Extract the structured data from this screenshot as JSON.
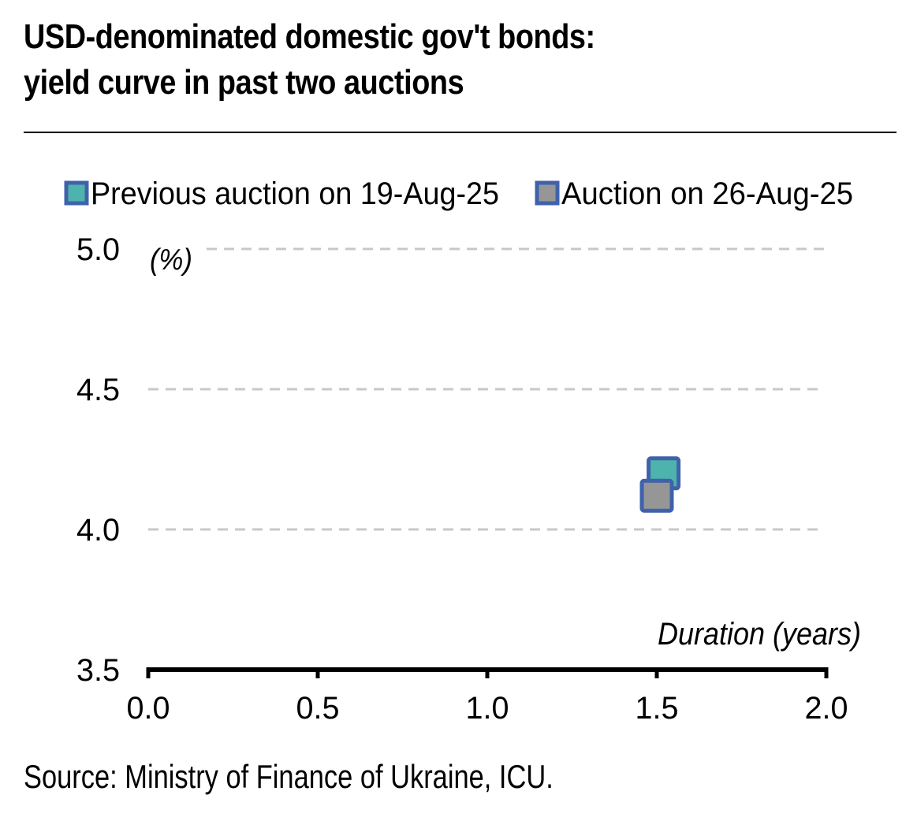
{
  "title_line1": "USD-denominated domestic gov't bonds:",
  "title_line2": "yield curve in past two auctions",
  "source": "Source: Ministry of Finance of Ukraine, ICU.",
  "colors": {
    "teal": "#4db3ac",
    "gray": "#969696",
    "border": "#3f62aa",
    "grid": "#c8c8c8"
  },
  "chart_data": {
    "type": "scatter",
    "title": "USD-denominated domestic gov't bonds: yield curve in past two auctions",
    "xlabel": "Duration (years)",
    "ylabel": "(%)",
    "xlim": [
      0.0,
      2.0
    ],
    "ylim": [
      3.5,
      5.0
    ],
    "xticks": [
      "0.0",
      "0.5",
      "1.0",
      "1.5",
      "2.0"
    ],
    "yticks": [
      "3.5",
      "4.0",
      "4.5",
      "5.0"
    ],
    "grid": "horizontal dashed",
    "legend_position": "top",
    "series": [
      {
        "name": "Previous auction on 19-Aug-25",
        "color": "#4db3ac",
        "points": [
          {
            "x": 1.52,
            "y": 4.2
          }
        ]
      },
      {
        "name": "Auction on 26-Aug-25",
        "color": "#969696",
        "points": [
          {
            "x": 1.5,
            "y": 4.12
          }
        ]
      }
    ]
  }
}
